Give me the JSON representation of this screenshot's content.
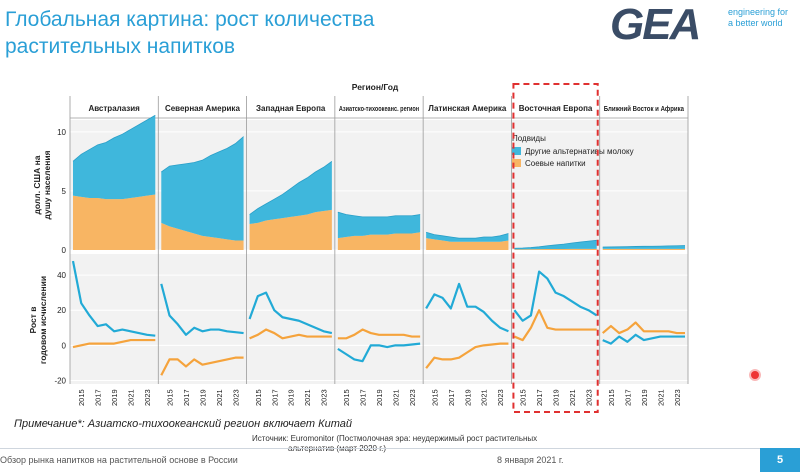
{
  "slide": {
    "title_line1": "Глобальная картина: рост количества",
    "title_line2": "растительных напитков",
    "logo_text": "GEA",
    "tagline_line1": "engineering for",
    "tagline_line2": "a better world",
    "note": "Примечание*: Азиатско-тихоокеанский регион включает Китай",
    "source_line1": "Источник: Euromonitor (Постмолочная эра: неудержимый рост растительных",
    "source_line2": "альтернатив (март 2020 г.)",
    "footer_left": "Обзор рынка напитков на растительной основе в России",
    "footer_date": "8 января 2021 г.",
    "page_number": "5"
  },
  "colors": {
    "title": "#2a9fd6",
    "other_alternatives": "#3fb7dc",
    "soy": "#f8b563",
    "highlight_box": "#e03030"
  },
  "chart_data": {
    "type": "area+line small multiples",
    "header_label": "Регион/Год",
    "regions": [
      "Австралазия",
      "Северная Америка",
      "Западная Европа",
      "Азиатско-тихоокеанс. регион",
      "Латинская Америка",
      "Восточная Европа",
      "Ближний Восток и Африка"
    ],
    "highlighted_region": "Восточная Европа",
    "years": [
      2014,
      2015,
      2016,
      2017,
      2018,
      2019,
      2020,
      2021,
      2022,
      2023,
      2024
    ],
    "year_tick_labels": [
      "2015",
      "2017",
      "2019",
      "2021",
      "2023"
    ],
    "legend_title": "Подвиды",
    "series": [
      {
        "name": "Другие альтернативы молоку",
        "color": "#3fb7dc"
      },
      {
        "name": "Соевые напитки",
        "color": "#f8b563"
      }
    ],
    "top_panel": {
      "type": "stacked-area",
      "ylabel": "долл. США на душу населения",
      "ylim": [
        0,
        11
      ],
      "yticks": [
        0,
        5,
        10
      ],
      "data": {
        "Австралазия": {
          "soy": [
            4.6,
            4.5,
            4.4,
            4.4,
            4.3,
            4.3,
            4.3,
            4.4,
            4.5,
            4.6,
            4.7
          ],
          "other": [
            2.9,
            3.6,
            4.1,
            4.5,
            4.8,
            5.2,
            5.5,
            5.8,
            6.1,
            6.4,
            6.7
          ]
        },
        "Северная Америка": {
          "soy": [
            2.3,
            2.0,
            1.8,
            1.6,
            1.4,
            1.2,
            1.1,
            1.0,
            0.9,
            0.8,
            0.8
          ],
          "other": [
            4.3,
            5.1,
            5.4,
            5.7,
            6.0,
            6.4,
            6.9,
            7.3,
            7.7,
            8.2,
            8.8
          ]
        },
        "Западная Европа": {
          "soy": [
            2.2,
            2.3,
            2.5,
            2.6,
            2.7,
            2.8,
            2.9,
            3.0,
            3.2,
            3.3,
            3.4
          ],
          "other": [
            0.8,
            1.2,
            1.4,
            1.7,
            2.0,
            2.4,
            2.8,
            3.1,
            3.4,
            3.7,
            4.1
          ]
        },
        "Азиатско-тихоокеанс. регион": {
          "soy": [
            1.0,
            1.1,
            1.2,
            1.2,
            1.3,
            1.3,
            1.3,
            1.4,
            1.4,
            1.4,
            1.5
          ],
          "other": [
            2.2,
            1.9,
            1.7,
            1.6,
            1.5,
            1.5,
            1.5,
            1.5,
            1.5,
            1.5,
            1.5
          ]
        },
        "Латинская Америка": {
          "soy": [
            1.0,
            0.9,
            0.8,
            0.7,
            0.7,
            0.7,
            0.7,
            0.7,
            0.7,
            0.7,
            0.8
          ],
          "other": [
            0.5,
            0.4,
            0.4,
            0.4,
            0.3,
            0.3,
            0.3,
            0.4,
            0.4,
            0.5,
            0.6
          ]
        },
        "Восточная Европа": {
          "soy": [
            0.05,
            0.05,
            0.06,
            0.07,
            0.08,
            0.08,
            0.08,
            0.09,
            0.09,
            0.1,
            0.1
          ],
          "other": [
            0.1,
            0.12,
            0.15,
            0.2,
            0.28,
            0.35,
            0.42,
            0.5,
            0.58,
            0.65,
            0.72
          ]
        },
        "Ближний Восток и Африка": {
          "soy": [
            0.1,
            0.1,
            0.1,
            0.1,
            0.1,
            0.1,
            0.1,
            0.1,
            0.1,
            0.1,
            0.1
          ],
          "other": [
            0.15,
            0.16,
            0.17,
            0.18,
            0.2,
            0.21,
            0.22,
            0.23,
            0.25,
            0.26,
            0.28
          ]
        }
      }
    },
    "bottom_panel": {
      "type": "line",
      "ylabel": "Рост в годовом исчислении",
      "ylim": [
        -22,
        52
      ],
      "yticks": [
        -20,
        0,
        20,
        40
      ],
      "data": {
        "Австралазия": {
          "other": [
            48,
            24,
            17,
            11,
            12,
            8,
            9,
            8,
            7,
            6,
            5.5
          ],
          "soy": [
            -1,
            0,
            1,
            1,
            1,
            1,
            2,
            3,
            3,
            3,
            3
          ]
        },
        "Северная Америка": {
          "other": [
            35,
            17,
            12,
            6,
            10,
            8,
            9,
            9,
            8,
            7.5,
            7
          ],
          "soy": [
            -17,
            -8,
            -8,
            -12,
            -8,
            -11,
            -10,
            -9,
            -8,
            -7,
            -7
          ]
        },
        "Западная Европа": {
          "other": [
            15,
            28,
            30,
            20,
            16,
            15,
            14,
            12,
            10,
            8,
            7
          ],
          "soy": [
            4,
            6,
            9,
            7,
            4,
            5,
            6,
            5,
            5,
            5,
            5
          ]
        },
        "Азиатско-тихоокеанс. регион": {
          "other": [
            -2,
            -5,
            -8,
            -9,
            0,
            0,
            -1,
            0,
            0,
            0.5,
            1
          ],
          "soy": [
            4,
            4,
            6,
            9,
            7,
            6,
            6,
            6,
            6,
            5,
            5
          ]
        },
        "Латинская Америка": {
          "other": [
            21,
            29,
            27,
            21,
            35,
            22,
            22,
            19,
            14,
            10,
            8
          ],
          "soy": [
            -13,
            -7,
            -8,
            -8,
            -7,
            -4,
            -1,
            0,
            0.5,
            1,
            1
          ]
        },
        "Восточная Европа": {
          "other": [
            20,
            14,
            17,
            42,
            38,
            30,
            28,
            25,
            22,
            20,
            17
          ],
          "soy": [
            5,
            3,
            10,
            20,
            10,
            9,
            9,
            9,
            9,
            9,
            9
          ]
        },
        "Ближний Восток и Африка": {
          "other": [
            3,
            1,
            5,
            2,
            6,
            3,
            4,
            5,
            5,
            5,
            5
          ],
          "soy": [
            7,
            11,
            7,
            9,
            13,
            8,
            8,
            8,
            8,
            7,
            7
          ]
        }
      }
    }
  }
}
